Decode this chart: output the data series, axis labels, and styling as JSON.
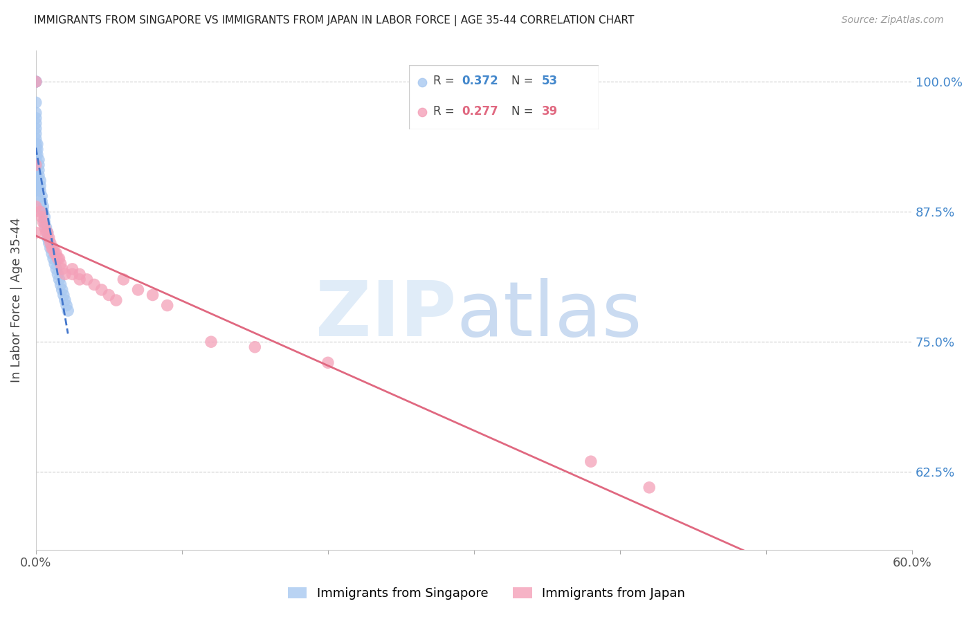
{
  "title": "IMMIGRANTS FROM SINGAPORE VS IMMIGRANTS FROM JAPAN IN LABOR FORCE | AGE 35-44 CORRELATION CHART",
  "source": "Source: ZipAtlas.com",
  "ylabel": "In Labor Force | Age 35-44",
  "r_singapore": 0.372,
  "n_singapore": 53,
  "r_japan": 0.277,
  "n_japan": 39,
  "color_singapore": "#a8c8f0",
  "color_japan": "#f4a0b8",
  "trendline_singapore": "#4477cc",
  "trendline_japan": "#e06880",
  "xlim": [
    0.0,
    0.6
  ],
  "ylim": [
    0.55,
    1.03
  ],
  "yticks_right": [
    0.625,
    0.75,
    0.875,
    1.0
  ],
  "ytick_right_labels": [
    "62.5%",
    "75.0%",
    "87.5%",
    "100.0%"
  ],
  "singapore_x": [
    0.0,
    0.0,
    0.0,
    0.0,
    0.0,
    0.0,
    0.0,
    0.0,
    0.0,
    0.0,
    0.0,
    0.0,
    0.0,
    0.0,
    0.0,
    0.0,
    0.0,
    0.0,
    0.0,
    0.0,
    0.001,
    0.001,
    0.001,
    0.002,
    0.002,
    0.002,
    0.002,
    0.003,
    0.003,
    0.003,
    0.004,
    0.004,
    0.005,
    0.005,
    0.006,
    0.006,
    0.007,
    0.008,
    0.008,
    0.009,
    0.01,
    0.011,
    0.012,
    0.013,
    0.014,
    0.015,
    0.016,
    0.017,
    0.018,
    0.019,
    0.02,
    0.021,
    0.022
  ],
  "singapore_y": [
    1.0,
    1.0,
    1.0,
    0.98,
    0.97,
    0.965,
    0.96,
    0.955,
    0.95,
    0.945,
    0.94,
    0.935,
    0.93,
    0.925,
    0.92,
    0.915,
    0.91,
    0.905,
    0.9,
    0.895,
    0.94,
    0.935,
    0.93,
    0.925,
    0.92,
    0.915,
    0.91,
    0.905,
    0.9,
    0.895,
    0.89,
    0.885,
    0.88,
    0.875,
    0.87,
    0.865,
    0.86,
    0.855,
    0.85,
    0.845,
    0.84,
    0.835,
    0.83,
    0.825,
    0.82,
    0.815,
    0.81,
    0.805,
    0.8,
    0.795,
    0.79,
    0.785,
    0.78
  ],
  "japan_x": [
    0.0,
    0.0,
    0.0,
    0.0,
    0.003,
    0.004,
    0.005,
    0.006,
    0.007,
    0.008,
    0.009,
    0.01,
    0.011,
    0.012,
    0.013,
    0.014,
    0.015,
    0.016,
    0.017,
    0.018,
    0.02,
    0.025,
    0.025,
    0.03,
    0.03,
    0.035,
    0.04,
    0.045,
    0.05,
    0.055,
    0.06,
    0.07,
    0.08,
    0.09,
    0.12,
    0.15,
    0.2,
    0.38,
    0.42
  ],
  "japan_y": [
    1.0,
    0.92,
    0.88,
    0.855,
    0.875,
    0.87,
    0.865,
    0.86,
    0.855,
    0.855,
    0.85,
    0.845,
    0.84,
    0.84,
    0.835,
    0.835,
    0.83,
    0.83,
    0.825,
    0.82,
    0.815,
    0.82,
    0.815,
    0.815,
    0.81,
    0.81,
    0.805,
    0.8,
    0.795,
    0.79,
    0.81,
    0.8,
    0.795,
    0.785,
    0.75,
    0.745,
    0.73,
    0.635,
    0.61
  ]
}
